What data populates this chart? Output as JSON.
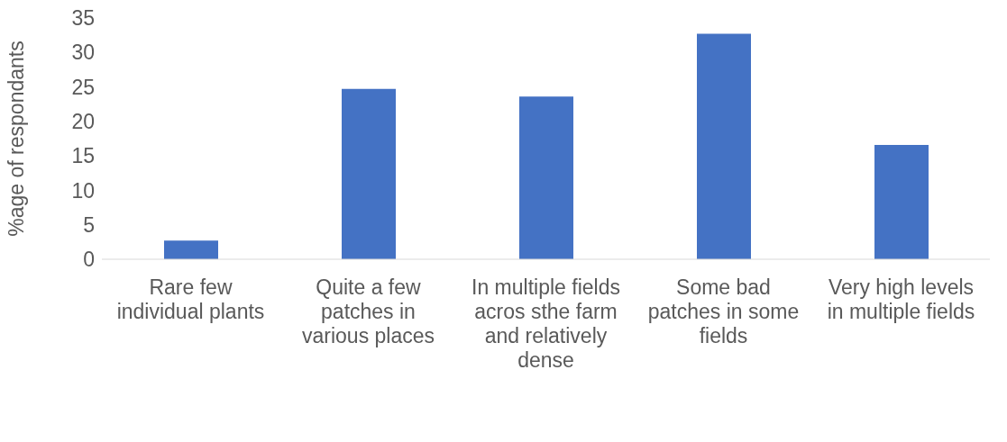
{
  "chart_data": {
    "type": "bar",
    "ylabel": "%age of respondants",
    "categories": [
      "Rare few individual plants",
      "Quite a few patches in various places",
      "In multiple fields acros sthe farm and relatively dense",
      "Some bad patches in some fields",
      "Very high levels in multiple fields"
    ],
    "values": [
      2.7,
      24.7,
      23.6,
      32.7,
      16.6
    ],
    "color": "#4472c4",
    "ylim": [
      0,
      35
    ],
    "yticks": [
      0,
      5,
      10,
      15,
      20,
      25,
      30,
      35
    ],
    "grid": false,
    "legend": false
  }
}
